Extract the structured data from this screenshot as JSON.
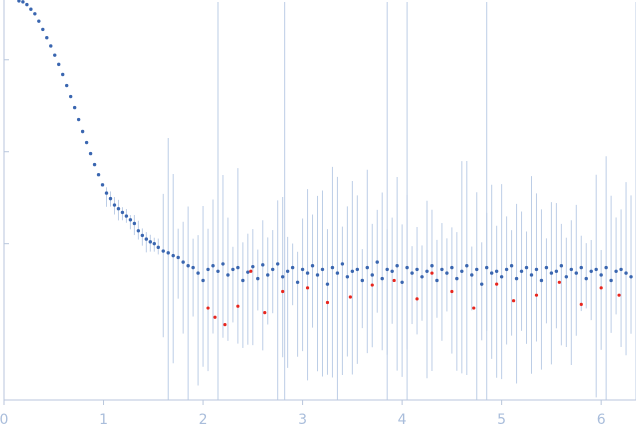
{
  "chart_data": {
    "type": "scatter",
    "title": "",
    "xlabel": "",
    "ylabel": "",
    "xlim": [
      0,
      6.35
    ],
    "x_ticks": [
      0,
      1,
      2,
      3,
      4,
      5,
      6
    ],
    "y_scale": "log",
    "y_ticks_unlabeled": [
      1,
      2,
      3
    ],
    "ylim_log10": [
      -0.7,
      3.65
    ],
    "grid": false,
    "legend": "none",
    "colors": {
      "points": "#3a66b0",
      "outliers": "#e8261e",
      "error_bars": "#bccde6",
      "axis": "#b8c6dc",
      "tick_text": "#a9bddb"
    },
    "series": [
      {
        "role": "measured",
        "points": [
          [
            0.15,
            3.64
          ],
          [
            0.19,
            3.63
          ],
          [
            0.23,
            3.6
          ],
          [
            0.27,
            3.55
          ],
          [
            0.31,
            3.5
          ],
          [
            0.35,
            3.42
          ],
          [
            0.39,
            3.33
          ],
          [
            0.43,
            3.24
          ],
          [
            0.47,
            3.15
          ],
          [
            0.51,
            3.05
          ],
          [
            0.55,
            2.95
          ],
          [
            0.59,
            2.84
          ],
          [
            0.63,
            2.72
          ],
          [
            0.67,
            2.6
          ],
          [
            0.71,
            2.48
          ],
          [
            0.75,
            2.35
          ],
          [
            0.79,
            2.22
          ],
          [
            0.83,
            2.1
          ],
          [
            0.87,
            1.98
          ],
          [
            0.91,
            1.86
          ],
          [
            0.95,
            1.75
          ],
          [
            0.99,
            1.64
          ],
          [
            1.03,
            1.55
          ],
          [
            1.07,
            1.49
          ],
          [
            1.11,
            1.42
          ],
          [
            1.15,
            1.38
          ],
          [
            1.19,
            1.34
          ],
          [
            1.23,
            1.3
          ],
          [
            1.27,
            1.26
          ],
          [
            1.31,
            1.22
          ],
          [
            1.35,
            1.14
          ],
          [
            1.39,
            1.09
          ],
          [
            1.43,
            1.05
          ],
          [
            1.47,
            1.02
          ],
          [
            1.51,
            1.0
          ],
          [
            1.55,
            0.96
          ],
          [
            1.6,
            0.92
          ],
          [
            1.65,
            0.9
          ],
          [
            1.7,
            0.87
          ],
          [
            1.75,
            0.85
          ],
          [
            1.8,
            0.8
          ],
          [
            1.85,
            0.76
          ],
          [
            1.9,
            0.74
          ],
          [
            1.95,
            0.68
          ],
          [
            2.0,
            0.6
          ],
          [
            2.05,
            0.72
          ],
          [
            2.1,
            0.76
          ],
          [
            2.15,
            0.7
          ],
          [
            2.2,
            0.78
          ],
          [
            2.25,
            0.66
          ],
          [
            2.3,
            0.72
          ],
          [
            2.35,
            0.74
          ],
          [
            2.4,
            0.6
          ],
          [
            2.45,
            0.69
          ],
          [
            2.5,
            0.75
          ],
          [
            2.55,
            0.62
          ],
          [
            2.6,
            0.77
          ],
          [
            2.65,
            0.66
          ],
          [
            2.7,
            0.72
          ],
          [
            2.75,
            0.78
          ],
          [
            2.8,
            0.64
          ],
          [
            2.85,
            0.7
          ],
          [
            2.9,
            0.74
          ],
          [
            2.95,
            0.58
          ],
          [
            3.0,
            0.72
          ],
          [
            3.05,
            0.68
          ],
          [
            3.1,
            0.76
          ],
          [
            3.15,
            0.66
          ],
          [
            3.2,
            0.72
          ],
          [
            3.25,
            0.56
          ],
          [
            3.3,
            0.74
          ],
          [
            3.35,
            0.68
          ],
          [
            3.4,
            0.78
          ],
          [
            3.45,
            0.64
          ],
          [
            3.5,
            0.7
          ],
          [
            3.55,
            0.72
          ],
          [
            3.6,
            0.6
          ],
          [
            3.65,
            0.74
          ],
          [
            3.7,
            0.66
          ],
          [
            3.75,
            0.8
          ],
          [
            3.8,
            0.62
          ],
          [
            3.85,
            0.72
          ],
          [
            3.9,
            0.7
          ],
          [
            3.95,
            0.76
          ],
          [
            4.0,
            0.58
          ],
          [
            4.05,
            0.74
          ],
          [
            4.1,
            0.68
          ],
          [
            4.15,
            0.72
          ],
          [
            4.2,
            0.64
          ],
          [
            4.25,
            0.7
          ],
          [
            4.3,
            0.76
          ],
          [
            4.35,
            0.6
          ],
          [
            4.4,
            0.72
          ],
          [
            4.45,
            0.68
          ],
          [
            4.5,
            0.74
          ],
          [
            4.55,
            0.62
          ],
          [
            4.6,
            0.7
          ],
          [
            4.65,
            0.76
          ],
          [
            4.7,
            0.66
          ],
          [
            4.75,
            0.72
          ],
          [
            4.8,
            0.56
          ],
          [
            4.85,
            0.74
          ],
          [
            4.9,
            0.68
          ],
          [
            4.95,
            0.7
          ],
          [
            5.0,
            0.64
          ],
          [
            5.05,
            0.72
          ],
          [
            5.1,
            0.76
          ],
          [
            5.15,
            0.62
          ],
          [
            5.2,
            0.7
          ],
          [
            5.25,
            0.74
          ],
          [
            5.3,
            0.66
          ],
          [
            5.35,
            0.72
          ],
          [
            5.4,
            0.6
          ],
          [
            5.45,
            0.74
          ],
          [
            5.5,
            0.68
          ],
          [
            5.55,
            0.7
          ],
          [
            5.6,
            0.76
          ],
          [
            5.65,
            0.64
          ],
          [
            5.7,
            0.72
          ],
          [
            5.75,
            0.68
          ],
          [
            5.8,
            0.74
          ],
          [
            5.85,
            0.62
          ],
          [
            5.9,
            0.7
          ],
          [
            5.95,
            0.72
          ],
          [
            6.0,
            0.66
          ],
          [
            6.05,
            0.74
          ],
          [
            6.1,
            0.6
          ],
          [
            6.15,
            0.7
          ],
          [
            6.2,
            0.72
          ],
          [
            6.25,
            0.68
          ],
          [
            6.3,
            0.64
          ]
        ]
      },
      {
        "role": "outliers",
        "points": [
          [
            2.05,
            0.3
          ],
          [
            2.12,
            0.2
          ],
          [
            2.22,
            0.12
          ],
          [
            2.35,
            0.32
          ],
          [
            2.48,
            0.7
          ],
          [
            2.62,
            0.25
          ],
          [
            2.8,
            0.48
          ],
          [
            3.05,
            0.52
          ],
          [
            3.25,
            0.36
          ],
          [
            3.48,
            0.42
          ],
          [
            3.7,
            0.55
          ],
          [
            3.92,
            0.6
          ],
          [
            4.15,
            0.4
          ],
          [
            4.3,
            0.68
          ],
          [
            4.5,
            0.48
          ],
          [
            4.72,
            0.3
          ],
          [
            4.95,
            0.56
          ],
          [
            5.12,
            0.38
          ],
          [
            5.35,
            0.44
          ],
          [
            5.58,
            0.58
          ],
          [
            5.8,
            0.34
          ],
          [
            6.0,
            0.52
          ],
          [
            6.18,
            0.44
          ]
        ]
      }
    ]
  }
}
